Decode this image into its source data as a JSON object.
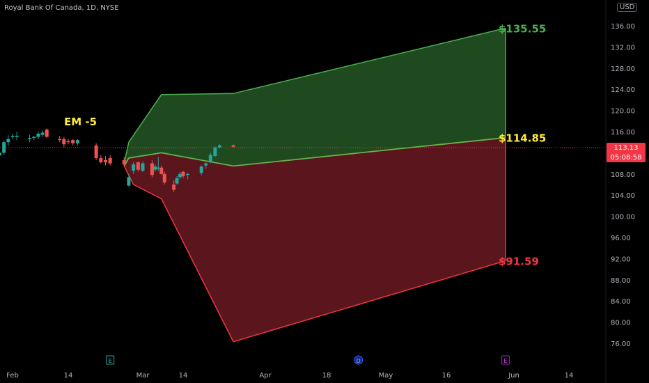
{
  "header": {
    "symbol_title": "Royal Bank Of Canada, 1D, NYSE",
    "currency_button": "USD"
  },
  "price_tag": {
    "price": "113.13",
    "countdown": "05:08:58"
  },
  "colors": {
    "up": "#26a69a",
    "down": "#ef5350",
    "upper_fill": "#1f4a1f",
    "upper_stroke": "#4caf50",
    "lower_fill": "#5a161c",
    "lower_stroke": "#f23645",
    "mid_stroke": "#6ab04c",
    "upper_label": "#4caf50",
    "mid_label": "#ffeb3b",
    "lower_label": "#f23645",
    "em_label": "#ffeb3b"
  },
  "chart_data": {
    "type": "line",
    "title": "",
    "annotation": "EM -5",
    "y_axis_ticks": [
      "76.00",
      "80.00",
      "84.00",
      "88.00",
      "92.00",
      "96.00",
      "100.00",
      "104.00",
      "108.00",
      "112.00",
      "116.00",
      "120.00",
      "124.00",
      "128.00",
      "132.00",
      "136.00"
    ],
    "ylim": [
      74.0,
      140.0
    ],
    "x_axis_ticks": [
      "Feb",
      "14",
      "Mar",
      "14",
      "Apr",
      "18",
      "May",
      "16",
      "Jun",
      "14"
    ],
    "event_markers": [
      {
        "label": "E",
        "date": "2024-02-23"
      },
      {
        "label": "D",
        "date": "2024-04-25"
      },
      {
        "label": "E",
        "date": "2024-05-30"
      }
    ],
    "current_price": 113.13,
    "expected_move_band": {
      "upper": [
        {
          "date": "2024-02-26",
          "value": 110.0
        },
        {
          "date": "2024-02-27",
          "value": 114.0
        },
        {
          "date": "2024-03-07",
          "value": 123.0
        },
        {
          "date": "2024-03-25",
          "value": 123.2
        },
        {
          "date": "2024-05-30",
          "value": 135.55
        }
      ],
      "middle": [
        {
          "date": "2024-02-26",
          "value": 109.5
        },
        {
          "date": "2024-02-27",
          "value": 111.0
        },
        {
          "date": "2024-03-07",
          "value": 112.0
        },
        {
          "date": "2024-03-25",
          "value": 109.5
        },
        {
          "date": "2024-05-30",
          "value": 114.85
        }
      ],
      "lower": [
        {
          "date": "2024-02-26",
          "value": 109.5
        },
        {
          "date": "2024-02-28",
          "value": 106.0
        },
        {
          "date": "2024-03-07",
          "value": 103.3
        },
        {
          "date": "2024-03-25",
          "value": 76.3
        },
        {
          "date": "2024-05-30",
          "value": 91.59
        }
      ],
      "end_labels": [
        "$135.55",
        "$114.85",
        "$91.59"
      ]
    },
    "candles": [
      {
        "date": "2024-01-29",
        "o": 111.5,
        "h": 112.3,
        "l": 110.6,
        "c": 112.0
      },
      {
        "date": "2024-01-30",
        "o": 112.0,
        "h": 114.3,
        "l": 111.6,
        "c": 114.0
      },
      {
        "date": "2024-01-31",
        "o": 114.0,
        "h": 115.3,
        "l": 113.4,
        "c": 114.6
      },
      {
        "date": "2024-02-01",
        "o": 115.0,
        "h": 115.6,
        "l": 114.6,
        "c": 115.2
      },
      {
        "date": "2024-02-02",
        "o": 115.0,
        "h": 116.0,
        "l": 114.4,
        "c": 115.2
      },
      {
        "date": "2024-02-05",
        "o": 114.6,
        "h": 115.4,
        "l": 114.0,
        "c": 114.8
      },
      {
        "date": "2024-02-06",
        "o": 114.8,
        "h": 115.2,
        "l": 114.4,
        "c": 115.0
      },
      {
        "date": "2024-02-07",
        "o": 115.0,
        "h": 116.0,
        "l": 114.6,
        "c": 115.6
      },
      {
        "date": "2024-02-08",
        "o": 115.4,
        "h": 116.2,
        "l": 115.0,
        "c": 115.8
      },
      {
        "date": "2024-02-09",
        "o": 116.4,
        "h": 116.6,
        "l": 114.8,
        "c": 115.0
      },
      {
        "date": "2024-02-12",
        "o": 114.6,
        "h": 115.2,
        "l": 114.0,
        "c": 114.4
      },
      {
        "date": "2024-02-13",
        "o": 114.6,
        "h": 115.0,
        "l": 113.0,
        "c": 113.6
      },
      {
        "date": "2024-02-14",
        "o": 114.2,
        "h": 114.6,
        "l": 113.6,
        "c": 114.0
      },
      {
        "date": "2024-02-15",
        "o": 114.4,
        "h": 114.6,
        "l": 113.4,
        "c": 113.8
      },
      {
        "date": "2024-02-16",
        "o": 113.8,
        "h": 114.6,
        "l": 113.4,
        "c": 114.4
      },
      {
        "date": "2024-02-20",
        "o": 113.4,
        "h": 113.8,
        "l": 110.6,
        "c": 111.0
      },
      {
        "date": "2024-02-21",
        "o": 111.0,
        "h": 111.6,
        "l": 110.0,
        "c": 110.2
      },
      {
        "date": "2024-02-22",
        "o": 110.6,
        "h": 111.4,
        "l": 109.6,
        "c": 110.2
      },
      {
        "date": "2024-02-23",
        "o": 111.0,
        "h": 111.6,
        "l": 109.6,
        "c": 110.0
      },
      {
        "date": "2024-02-26",
        "o": 110.6,
        "h": 111.2,
        "l": 109.4,
        "c": 109.8
      },
      {
        "date": "2024-02-27",
        "o": 105.8,
        "h": 108.0,
        "l": 105.6,
        "c": 107.4
      },
      {
        "date": "2024-02-28",
        "o": 108.6,
        "h": 110.2,
        "l": 108.0,
        "c": 109.8
      },
      {
        "date": "2024-02-29",
        "o": 110.2,
        "h": 110.4,
        "l": 108.4,
        "c": 108.8
      },
      {
        "date": "2024-03-01",
        "o": 108.6,
        "h": 110.4,
        "l": 108.4,
        "c": 110.0
      },
      {
        "date": "2024-03-04",
        "o": 110.0,
        "h": 110.6,
        "l": 107.4,
        "c": 107.8
      },
      {
        "date": "2024-03-05",
        "o": 108.8,
        "h": 109.8,
        "l": 108.4,
        "c": 109.4
      },
      {
        "date": "2024-03-06",
        "o": 109.0,
        "h": 111.2,
        "l": 108.6,
        "c": 109.2
      },
      {
        "date": "2024-03-07",
        "o": 109.2,
        "h": 109.6,
        "l": 107.8,
        "c": 108.0
      },
      {
        "date": "2024-03-08",
        "o": 108.0,
        "h": 108.4,
        "l": 106.0,
        "c": 106.4
      },
      {
        "date": "2024-03-11",
        "o": 106.0,
        "h": 106.8,
        "l": 104.6,
        "c": 105.0
      },
      {
        "date": "2024-03-12",
        "o": 106.2,
        "h": 107.6,
        "l": 106.0,
        "c": 107.2
      },
      {
        "date": "2024-03-13",
        "o": 107.4,
        "h": 108.4,
        "l": 107.0,
        "c": 108.0
      },
      {
        "date": "2024-03-14",
        "o": 108.4,
        "h": 108.6,
        "l": 107.2,
        "c": 107.6
      },
      {
        "date": "2024-03-15",
        "o": 107.8,
        "h": 108.2,
        "l": 107.0,
        "c": 108.0
      },
      {
        "date": "2024-03-18",
        "o": 108.2,
        "h": 109.6,
        "l": 107.8,
        "c": 109.4
      },
      {
        "date": "2024-03-19",
        "o": 109.6,
        "h": 110.2,
        "l": 109.0,
        "c": 110.0
      },
      {
        "date": "2024-03-20",
        "o": 110.2,
        "h": 112.0,
        "l": 110.0,
        "c": 111.6
      },
      {
        "date": "2024-03-21",
        "o": 111.4,
        "h": 113.2,
        "l": 111.2,
        "c": 113.0
      },
      {
        "date": "2024-03-22",
        "o": 113.0,
        "h": 113.6,
        "l": 112.8,
        "c": 113.4
      },
      {
        "date": "2024-03-25",
        "o": 113.4,
        "h": 113.6,
        "l": 113.0,
        "c": 113.13
      }
    ]
  }
}
